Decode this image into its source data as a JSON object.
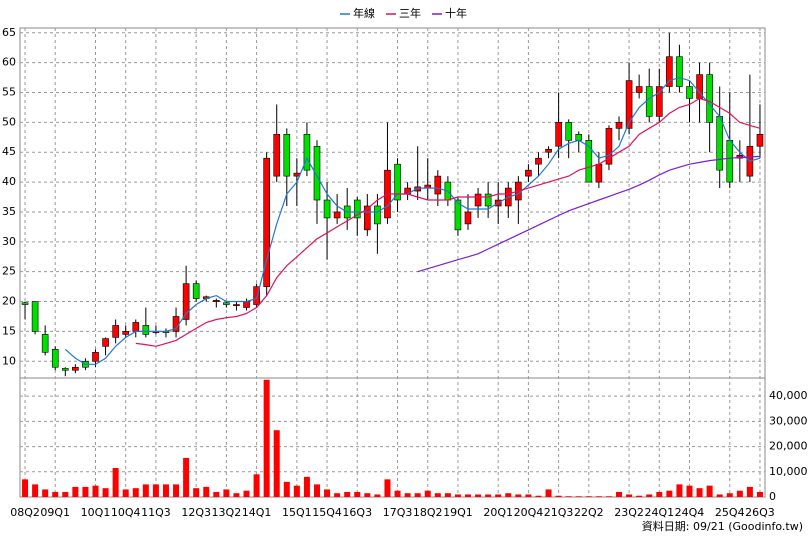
{
  "chart_data": [
    {
      "type": "candlestick",
      "legend": [
        {
          "name": "年線",
          "color": "#1e78d2"
        },
        {
          "name": "三年",
          "color": "#e0115f"
        },
        {
          "name": "十年",
          "color": "#7b1fd0"
        }
      ],
      "categories": [
        "08Q2",
        null,
        null,
        "09Q1",
        null,
        null,
        null,
        "10Q1",
        null,
        null,
        "10Q4",
        null,
        null,
        "11Q3",
        null,
        null,
        null,
        "12Q3",
        null,
        null,
        "13Q2",
        null,
        null,
        "14Q1",
        null,
        null,
        null,
        "15Q1",
        null,
        null,
        "15Q4",
        null,
        null,
        "16Q3",
        null,
        null,
        null,
        "17Q3",
        null,
        null,
        "18Q2",
        null,
        null,
        "19Q1",
        null,
        null,
        null,
        "20Q1",
        null,
        null,
        "20Q4",
        null,
        null,
        "21Q3",
        null,
        null,
        "22Q2",
        null,
        null,
        null,
        "23Q2",
        null,
        null,
        "24Q1",
        null,
        null,
        "24Q4",
        null,
        null,
        null,
        "25Q4",
        null,
        null,
        "26Q3"
      ],
      "open": [
        19.8,
        20,
        14.5,
        12,
        8.8,
        8.5,
        10,
        10,
        12.5,
        14,
        14.5,
        15,
        16,
        14.8,
        15,
        15,
        17,
        23,
        20.5,
        20,
        19.8,
        19.3,
        19,
        19.5,
        22.5,
        41,
        48,
        41,
        48,
        46,
        37,
        34,
        36,
        37,
        32,
        36,
        34,
        43,
        38,
        38.5,
        39,
        38,
        40,
        37,
        33,
        36,
        38,
        36,
        36,
        37,
        41,
        43,
        45,
        46,
        50,
        48,
        47,
        40,
        43,
        49,
        49,
        55,
        56,
        51,
        56,
        61,
        56,
        54,
        58,
        51,
        47,
        44,
        41,
        46
      ],
      "high": [
        20,
        20,
        16,
        12.5,
        9,
        9.5,
        10.5,
        12,
        14,
        17,
        16,
        17,
        19,
        16,
        15.5,
        19,
        26,
        23.5,
        21,
        20.5,
        20,
        20,
        20.5,
        23,
        45,
        53,
        49,
        44,
        50,
        47,
        40,
        38,
        39,
        37.5,
        38,
        38,
        50,
        44,
        40,
        46,
        44,
        42,
        41,
        37.5,
        38,
        39,
        40,
        40,
        40,
        41,
        43,
        45,
        46,
        55,
        50.5,
        48.5,
        48,
        45,
        49.5,
        51,
        60,
        58,
        59,
        59,
        65,
        63,
        57,
        60,
        60,
        56,
        55,
        47,
        58,
        53
      ],
      "low": [
        17,
        14.5,
        11,
        8.5,
        7.5,
        8,
        8.5,
        9,
        11,
        13,
        14,
        14,
        14,
        14.5,
        14,
        14,
        16,
        20,
        20,
        19,
        19,
        18.5,
        18.5,
        19,
        21,
        40,
        36,
        36,
        41,
        33,
        27,
        33,
        32,
        31,
        31,
        28,
        33,
        35,
        37,
        37,
        37,
        36,
        36,
        31,
        32,
        34,
        34,
        33,
        34,
        33,
        40,
        41,
        44,
        44,
        44,
        45,
        40,
        39,
        42,
        47,
        48,
        54,
        50,
        50,
        55,
        55,
        50,
        50,
        45,
        39,
        39,
        40,
        40,
        44
      ],
      "close": [
        19.5,
        15,
        11.5,
        9,
        8.5,
        9,
        9,
        11.5,
        13.8,
        16,
        15,
        16.5,
        14.5,
        15,
        14.8,
        17.5,
        23,
        20.5,
        20.8,
        20.2,
        19.5,
        19.5,
        20,
        22.5,
        44,
        48,
        41,
        41.5,
        42,
        37,
        34,
        35,
        34,
        34,
        36,
        33,
        42,
        37,
        39,
        39.2,
        39.5,
        41,
        37,
        32,
        35,
        38,
        36,
        37,
        39,
        40,
        42,
        44,
        45.5,
        50,
        47,
        47,
        40,
        43,
        49,
        50,
        57,
        56,
        51,
        56,
        61,
        56,
        54,
        58,
        50,
        42,
        40,
        44.5,
        46,
        48
      ],
      "up_color": "#ff0000",
      "down_color": "#00e000",
      "lines": [
        {
          "name": "年線",
          "color": "#1e78d2",
          "values": [
            null,
            null,
            null,
            null,
            12,
            10.5,
            9.5,
            9.5,
            10.5,
            12.5,
            14,
            15,
            15,
            15,
            15,
            15.5,
            18,
            19.5,
            20.5,
            21,
            20,
            20,
            20,
            20.5,
            27,
            33,
            38,
            40,
            44,
            41,
            38,
            36,
            35,
            35,
            35,
            35,
            36,
            38,
            38,
            39,
            39,
            39,
            38.5,
            36.5,
            35.5,
            35.5,
            35.5,
            36.5,
            37.5,
            38,
            39.5,
            41,
            43,
            45.5,
            46.5,
            47,
            46,
            44,
            44.5,
            46,
            50,
            52.5,
            54,
            55,
            57,
            57.5,
            57,
            55,
            53,
            51,
            47,
            45,
            43.5,
            44
          ]
        },
        {
          "name": "三年",
          "color": "#e0115f",
          "values": [
            null,
            null,
            null,
            null,
            null,
            null,
            null,
            null,
            null,
            null,
            null,
            13,
            12.8,
            12.5,
            13,
            13.5,
            14.5,
            15.5,
            16.5,
            17,
            17.3,
            17.5,
            18,
            19,
            21,
            24,
            26,
            27.5,
            29,
            30.5,
            31.5,
            32.5,
            33.5,
            34.5,
            35.5,
            37,
            38,
            38,
            38,
            37.5,
            37,
            37,
            37,
            37.5,
            37.5,
            37.5,
            37.5,
            38,
            38,
            38.5,
            39,
            39.5,
            40,
            40.5,
            41,
            42,
            42.5,
            43,
            44,
            45,
            46,
            48,
            49,
            50,
            51.5,
            52.5,
            53,
            54,
            53.5,
            52.5,
            51.5,
            50,
            49.5,
            49
          ]
        },
        {
          "name": "十年",
          "color": "#7b1fd0",
          "values": [
            null,
            null,
            null,
            null,
            null,
            null,
            null,
            null,
            null,
            null,
            null,
            null,
            null,
            null,
            null,
            null,
            null,
            null,
            null,
            null,
            null,
            null,
            null,
            null,
            null,
            null,
            null,
            null,
            null,
            null,
            null,
            null,
            null,
            null,
            null,
            null,
            null,
            null,
            null,
            25,
            25.5,
            26,
            26.5,
            27,
            27.5,
            28,
            28.8,
            29.6,
            30.4,
            31.2,
            32,
            32.8,
            33.6,
            34.4,
            35.2,
            35.8,
            36.4,
            37,
            37.6,
            38.2,
            38.8,
            39.5,
            40.3,
            41.2,
            42,
            42.5,
            43,
            43.3,
            43.6,
            43.8,
            44,
            44.1,
            44.2,
            44.3
          ]
        }
      ],
      "ylim": [
        7.2,
        65.8
      ],
      "yticks": [
        10,
        15,
        20,
        25,
        30,
        35,
        40,
        45,
        50,
        55,
        60,
        65
      ],
      "grid": true
    },
    {
      "type": "bar",
      "color": "#ff0000",
      "values": [
        7000,
        5000,
        3000,
        2000,
        2000,
        4000,
        4000,
        4500,
        3500,
        11500,
        3000,
        3500,
        5000,
        5000,
        5000,
        5000,
        15500,
        3500,
        4000,
        2000,
        3000,
        1500,
        2500,
        9000,
        46500,
        26500,
        6000,
        4500,
        8000,
        5000,
        3000,
        1500,
        2000,
        2000,
        1500,
        1000,
        7000,
        2500,
        1500,
        1500,
        2500,
        1500,
        1500,
        1000,
        1000,
        1000,
        1000,
        1000,
        1500,
        1000,
        1000,
        500,
        3000,
        500,
        300,
        300,
        300,
        300,
        300,
        2000,
        1000,
        500,
        1000,
        2000,
        2500,
        5000,
        4500,
        3500,
        4500,
        1000,
        1500,
        2500,
        4000,
        2000
      ],
      "ylim": [
        0,
        47200
      ],
      "yticks": [
        0,
        {
          "value": 10000,
          "label": "10,000"
        },
        {
          "value": 20000,
          "label": "20,000"
        },
        {
          "value": 30000,
          "label": "30,000"
        },
        {
          "value": 40000,
          "label": "40,000"
        }
      ],
      "grid": true
    },
    {
      "type": "footer",
      "text": "資料日期: 09/21 (Goodinfo.tw)"
    }
  ]
}
